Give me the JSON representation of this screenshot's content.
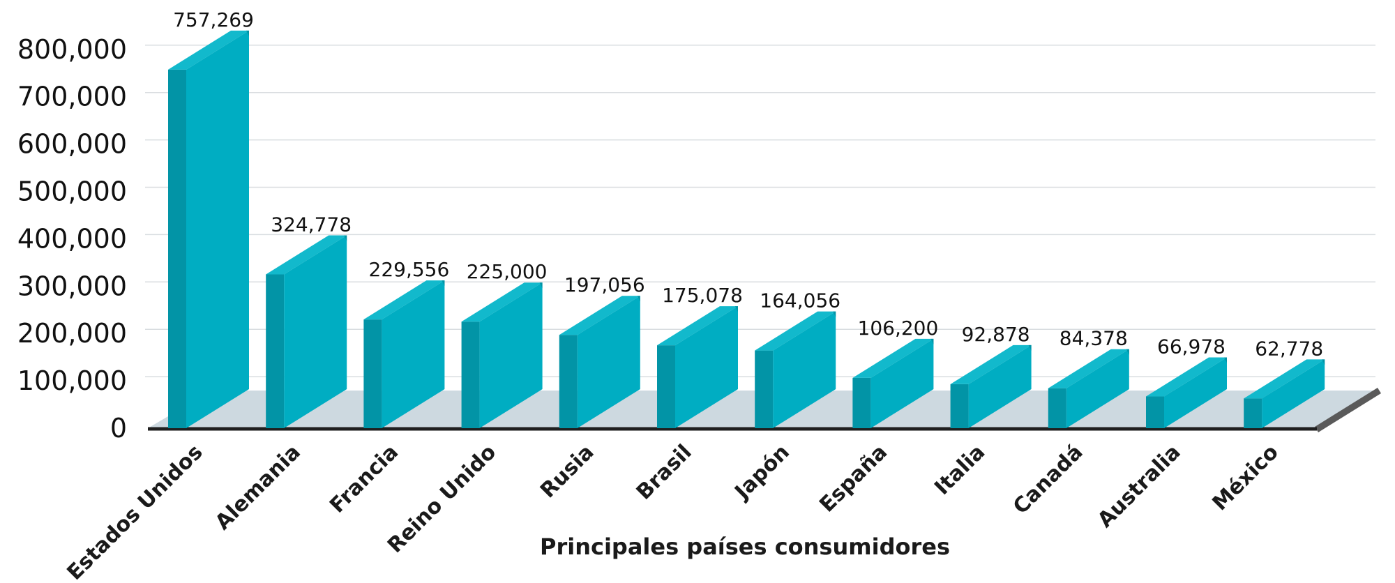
{
  "chart_data": {
    "type": "bar",
    "style": "3d",
    "categories": [
      "Estados Unidos",
      "Alemania",
      "Francia",
      "Reino Unido",
      "Rusia",
      "Brasil",
      "Japón",
      "España",
      "Italia",
      "Canadá",
      "Australia",
      "México"
    ],
    "values": [
      757269,
      324778,
      229556,
      225000,
      197056,
      175078,
      164056,
      106200,
      92878,
      84378,
      66978,
      62778
    ],
    "data_labels": [
      "757,269",
      "324,778",
      "229,556",
      "225,000",
      "197,056",
      "175,078",
      "164,056",
      "106,200",
      "92,878",
      "84,378",
      "66,978",
      "62,778"
    ],
    "yticks": [
      "0",
      "100,000",
      "200,000",
      "300,000",
      "400,000",
      "500,000",
      "600,000",
      "700,000",
      "800,000"
    ],
    "ylim": [
      0,
      800000
    ],
    "xlabel": "Principales países consumidores",
    "ylabel": "",
    "title": "",
    "grid": true,
    "legend": "none",
    "colors": {
      "bar_front": "#00adc2",
      "bar_side": "#0294a6",
      "bar_top": "#12b9cc",
      "floor": "#cdd9e0",
      "gridline": "#d9dde0",
      "axis": "#1f1f1f",
      "axis_side": "#5a5a5a"
    }
  }
}
